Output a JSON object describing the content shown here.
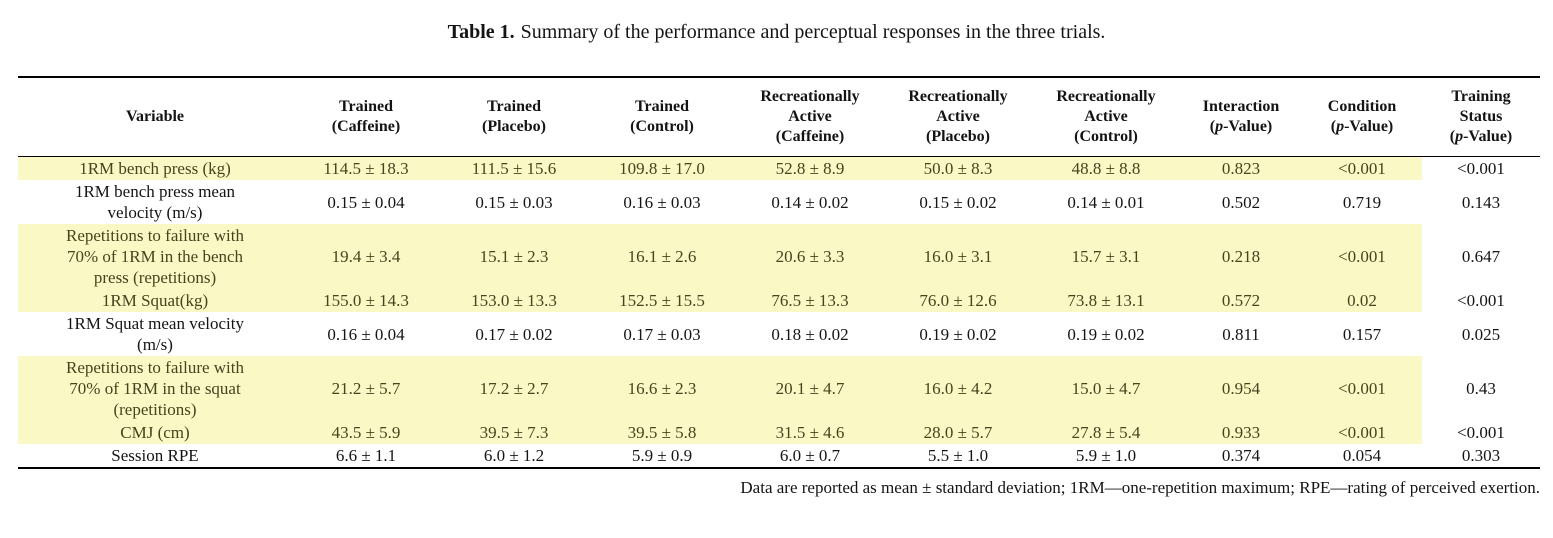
{
  "caption": {
    "label": "Table 1.",
    "text": "Summary of the performance and perceptual responses in the three trials."
  },
  "table": {
    "columns": [
      {
        "id": "variable",
        "lines": [
          "Variable"
        ]
      },
      {
        "id": "trained-caffeine",
        "lines": [
          "Trained",
          "(Caffeine)"
        ]
      },
      {
        "id": "trained-placebo",
        "lines": [
          "Trained",
          "(Placebo)"
        ]
      },
      {
        "id": "trained-control",
        "lines": [
          "Trained",
          "(Control)"
        ]
      },
      {
        "id": "rec-active-caffeine",
        "lines": [
          "Recreationally",
          "Active",
          "(Caffeine)"
        ]
      },
      {
        "id": "rec-active-placebo",
        "lines": [
          "Recreationally",
          "Active",
          "(Placebo)"
        ]
      },
      {
        "id": "rec-active-control",
        "lines": [
          "Recreationally",
          "Active",
          "(Control)"
        ]
      },
      {
        "id": "interaction-p",
        "lines": [
          "Interaction",
          "(p-Value)"
        ]
      },
      {
        "id": "condition-p",
        "lines": [
          "Condition",
          "(p-Value)"
        ]
      },
      {
        "id": "training-status-p",
        "lines": [
          "Training",
          "Status",
          "(p-Value)"
        ]
      }
    ],
    "rows": [
      {
        "variable": "1RM bench press (kg)",
        "values": [
          "114.5 ± 18.3",
          "111.5 ± 15.6",
          "109.8 ± 17.0",
          "52.8 ± 8.9",
          "50.0 ± 8.3",
          "48.8 ± 8.8",
          "0.823",
          "<0.001",
          "<0.001"
        ],
        "highlight": true
      },
      {
        "variable": "1RM bench press mean velocity (m/s)",
        "values": [
          "0.15 ± 0.04",
          "0.15 ± 0.03",
          "0.16 ± 0.03",
          "0.14 ± 0.02",
          "0.15 ± 0.02",
          "0.14 ± 0.01",
          "0.502",
          "0.719",
          "0.143"
        ],
        "highlight": false
      },
      {
        "variable": "Repetitions to failure with 70% of 1RM in the bench press (repetitions)",
        "values": [
          "19.4 ± 3.4",
          "15.1 ± 2.3",
          "16.1 ± 2.6",
          "20.6 ± 3.3",
          "16.0 ± 3.1",
          "15.7 ± 3.1",
          "0.218",
          "<0.001",
          "0.647"
        ],
        "highlight": true
      },
      {
        "variable": "1RM Squat(kg)",
        "values": [
          "155.0 ± 14.3",
          "153.0 ± 13.3",
          "152.5 ± 15.5",
          "76.5 ± 13.3",
          "76.0 ± 12.6",
          "73.8 ± 13.1",
          "0.572",
          "0.02",
          "<0.001"
        ],
        "highlight": true
      },
      {
        "variable": "1RM Squat mean velocity (m/s)",
        "values": [
          "0.16 ± 0.04",
          "0.17 ± 0.02",
          "0.17 ± 0.03",
          "0.18 ± 0.02",
          "0.19 ± 0.02",
          "0.19 ± 0.02",
          "0.811",
          "0.157",
          "0.025"
        ],
        "highlight": false
      },
      {
        "variable": "Repetitions to failure with 70% of 1RM in the squat (repetitions)",
        "values": [
          "21.2 ± 5.7",
          "17.2 ± 2.7",
          "16.6 ± 2.3",
          "20.1 ± 4.7",
          "16.0 ± 4.2",
          "15.0 ± 4.7",
          "0.954",
          "<0.001",
          "0.43"
        ],
        "highlight": true
      },
      {
        "variable": "CMJ (cm)",
        "values": [
          "43.5 ± 5.9",
          "39.5 ± 7.3",
          "39.5 ± 5.8",
          "31.5 ± 4.6",
          "28.0 ± 5.7",
          "27.8 ± 5.4",
          "0.933",
          "<0.001",
          "<0.001"
        ],
        "highlight": true
      },
      {
        "variable": "Session RPE",
        "values": [
          "6.6 ± 1.1",
          "6.0 ± 1.2",
          "5.9 ± 0.9",
          "6.0 ± 0.7",
          "5.5 ± 1.0",
          "5.9 ± 1.0",
          "0.374",
          "0.054",
          "0.303"
        ],
        "highlight": false
      }
    ],
    "highlighted_columns_count": 9
  },
  "footnote": "Data are reported as mean ± standard deviation; 1RM—one-repetition maximum; RPE—rating of perceived exertion.",
  "colors": {
    "highlight_bg": "#faf9c5",
    "highlight_text": "#45441f",
    "text": "#141414"
  }
}
